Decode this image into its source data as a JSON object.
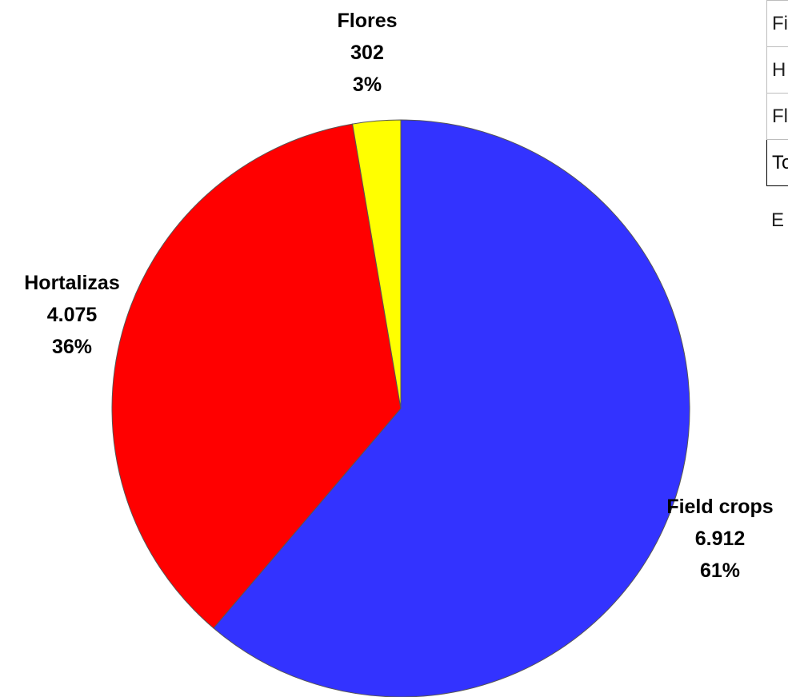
{
  "chart_data": {
    "type": "pie",
    "start_angle_deg": 0,
    "direction": "clockwise",
    "slices": [
      {
        "label": "Field crops",
        "value": 6912,
        "value_text": "6.912",
        "percent_text": "61%",
        "color": "#3333ff"
      },
      {
        "label": "Hortalizas",
        "value": 4075,
        "value_text": "4.075",
        "percent_text": "36%",
        "color": "#ff0000"
      },
      {
        "label": "Flores",
        "value": 302,
        "value_text": "302",
        "percent_text": "3%",
        "color": "#ffff00"
      }
    ],
    "title": "",
    "legend": "none"
  },
  "side_table": {
    "rows": [
      "Fi",
      "H",
      "Fl",
      "To"
    ],
    "note": "E"
  }
}
